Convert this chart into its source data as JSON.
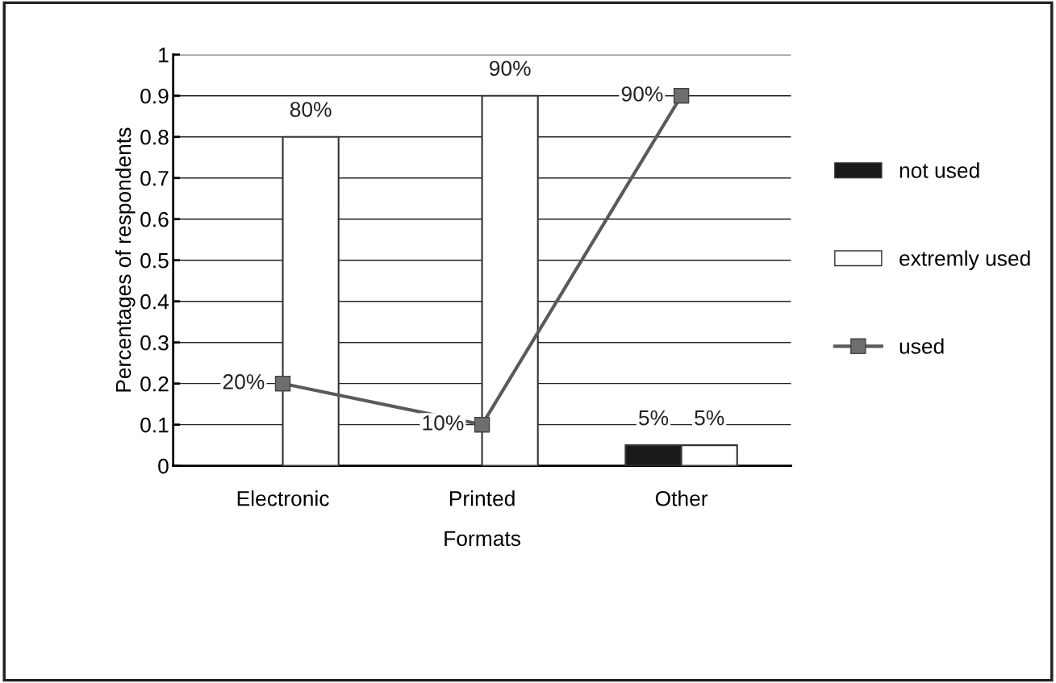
{
  "chart_data": {
    "type": "bar",
    "xlabel": "Formats",
    "ylabel": "Percentages of respondents",
    "categories": [
      "Electronic",
      "Printed",
      "Other"
    ],
    "series": [
      {
        "name": "not used",
        "color": "#1a1a1a",
        "values": [
          null,
          null,
          0.05
        ],
        "value_labels": [
          null,
          null,
          "5%"
        ]
      },
      {
        "name": "extremly used",
        "color": "#ffffff",
        "values": [
          0.8,
          0.9,
          0.05
        ],
        "value_labels": [
          "80%",
          "90%",
          "5%"
        ]
      },
      {
        "name": "used",
        "type": "line",
        "color": "#5a5a5a",
        "marker": "square",
        "values": [
          0.2,
          0.1,
          0.9
        ],
        "value_labels": [
          "20%",
          "10%",
          "90%"
        ]
      }
    ],
    "ylim": [
      0,
      1
    ],
    "yticks": [
      0,
      0.1,
      0.2,
      0.3,
      0.4,
      0.5,
      0.6,
      0.7,
      0.8,
      0.9,
      1
    ],
    "grid": "y",
    "legend": "right"
  }
}
